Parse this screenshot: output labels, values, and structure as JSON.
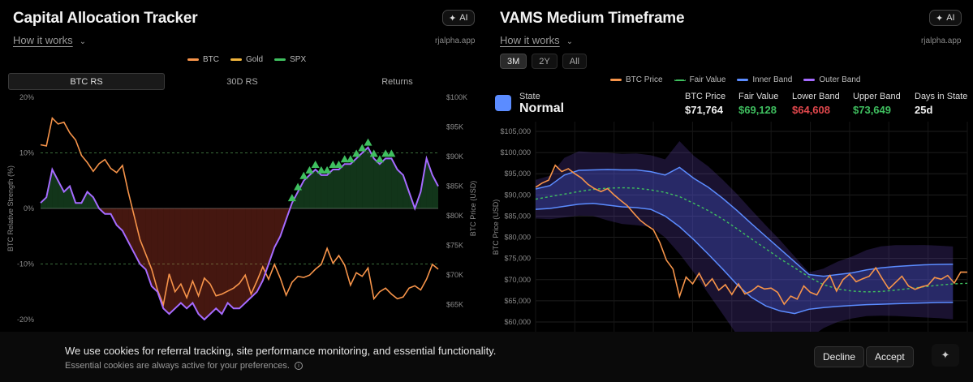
{
  "left": {
    "title": "Capital Allocation Tracker",
    "ai_label": "AI",
    "how_it_works": "How it works",
    "site": "rjalpha.app",
    "legend": [
      {
        "label": "BTC",
        "color": "#f7944a"
      },
      {
        "label": "Gold",
        "color": "#f0b43c"
      },
      {
        "label": "SPX",
        "color": "#3fbf5f"
      }
    ],
    "tabs": [
      "BTC RS",
      "30D RS",
      "Returns"
    ],
    "active_tab": "BTC RS"
  },
  "right": {
    "title": "VAMS Medium Timeframe",
    "ai_label": "AI",
    "how_it_works": "How it works",
    "site": "rjalpha.app",
    "ranges": [
      "3M",
      "2Y",
      "All"
    ],
    "active_range": "3M",
    "legend": [
      {
        "label": "BTC Price",
        "color": "#f7944a"
      },
      {
        "label": "Fair Value",
        "color": "#3fbf5f"
      },
      {
        "label": "Inner Band",
        "color": "#5b8cff"
      },
      {
        "label": "Outer Band",
        "color": "#a56bff"
      }
    ],
    "state": {
      "label": "State",
      "value": "Normal",
      "color": "#5b8cff"
    },
    "stats": [
      {
        "label": "BTC Price",
        "value": "$71,764",
        "color": "#f2f2f2"
      },
      {
        "label": "Fair Value",
        "value": "$69,128",
        "color": "#3fbf5f"
      },
      {
        "label": "Lower Band",
        "value": "$64,608",
        "color": "#e0474c"
      },
      {
        "label": "Upper Band",
        "value": "$73,649",
        "color": "#3fbf5f"
      },
      {
        "label": "Days in State",
        "value": "25d",
        "color": "#f2f2f2"
      }
    ]
  },
  "chart_data": [
    {
      "type": "line",
      "title": "Capital Allocation Tracker - BTC RS",
      "ylabel": "BTC Relative Strength (%)",
      "y2label": "BTC Price (USD)",
      "ylim": [
        -20,
        20
      ],
      "y_ticks": [
        "20%",
        "10%",
        "0%",
        "-10%",
        "-20%"
      ],
      "y2lim": [
        62500,
        100000
      ],
      "y2_ticks": [
        "$100K",
        "$95K",
        "$90K",
        "$85K",
        "$80K",
        "$75K",
        "$70K",
        "$65K"
      ],
      "series": [
        {
          "name": "BTC RS",
          "color": "#a56bff",
          "values": [
            1,
            2,
            7,
            5,
            3,
            4,
            1,
            1,
            3,
            2,
            0,
            -1,
            -1,
            -3,
            -4,
            -6,
            -8,
            -10,
            -11,
            -14,
            -15,
            -18,
            -19,
            -18,
            -17,
            -18,
            -17,
            -19,
            -20,
            -19,
            -18,
            -19,
            -17,
            -18,
            -18,
            -17,
            -16,
            -15,
            -13,
            -10,
            -7,
            -5,
            -2,
            1,
            3,
            5,
            6,
            7,
            6,
            6,
            7,
            7,
            8,
            8,
            9,
            10,
            11,
            9,
            8,
            9,
            9,
            7,
            6,
            3,
            0,
            3,
            9,
            6,
            4
          ]
        },
        {
          "name": "BTC Price",
          "color": "#f7944a",
          "values": [
            92000,
            91800,
            96500,
            95500,
            95800,
            94000,
            92800,
            90200,
            89000,
            87500,
            88800,
            89500,
            88000,
            87300,
            88500,
            84000,
            80000,
            76000,
            73500,
            71000,
            67500,
            65000,
            70200,
            67200,
            68500,
            66200,
            69000,
            66500,
            69500,
            68500,
            66500,
            66800,
            67300,
            67800,
            68600,
            70000,
            66800,
            69000,
            71400,
            69300,
            71800,
            69500,
            66600,
            68800,
            69800,
            69600,
            70000,
            71000,
            71800,
            74500,
            72000,
            73300,
            71700,
            68300,
            70400,
            69800,
            71200,
            66000,
            67200,
            67800,
            66800,
            66000,
            66300,
            67800,
            68200,
            67500,
            69300,
            71800,
            71000
          ]
        }
      ],
      "markers": {
        "name": "SPX signal",
        "color": "#3fbf5f",
        "count": 18
      }
    },
    {
      "type": "line",
      "title": "VAMS Medium Timeframe",
      "ylabel": "BTC Price (USD)",
      "ylim": [
        58000,
        107000
      ],
      "y_ticks": [
        "$105,000",
        "$100,000",
        "$95,000",
        "$90,000",
        "$85,000",
        "$80,000",
        "$75,000",
        "$70,000",
        "$65,000",
        "$60,000"
      ],
      "series": [
        {
          "name": "BTC Price",
          "color": "#f7944a",
          "values": [
            91800,
            92800,
            93500,
            97000,
            95500,
            96200,
            95000,
            94000,
            92500,
            91500,
            90800,
            91500,
            90000,
            88700,
            87500,
            85700,
            84000,
            82800,
            81800,
            78700,
            74600,
            72500,
            66000,
            70600,
            69000,
            71500,
            68500,
            70200,
            67500,
            68800,
            66500,
            69000,
            66600,
            67300,
            68500,
            67800,
            68000,
            67000,
            64200,
            66100,
            65400,
            68500,
            67000,
            66400,
            69200,
            71000,
            67300,
            70000,
            71300,
            69500,
            70200,
            70800,
            72800,
            70200,
            67800,
            69300,
            70800,
            68500,
            67700,
            68300,
            68700,
            70500,
            70100,
            71000,
            69200,
            71800,
            71764
          ]
        },
        {
          "name": "Fair Value",
          "color": "#3fbf5f",
          "values": [
            89000,
            89600,
            90200,
            90800,
            91300,
            91600,
            91700,
            91600,
            91200,
            90600,
            89600,
            88000,
            86300,
            84300,
            82000,
            79600,
            77300,
            74900,
            72800,
            70600,
            68800,
            67800,
            67300,
            67100,
            67200,
            67500,
            67900,
            68300,
            68700,
            69000,
            69128
          ]
        },
        {
          "name": "Inner Band Upper",
          "color": "#5b8cff",
          "values": [
            91400,
            92200,
            94700,
            95800,
            95900,
            96000,
            95900,
            95900,
            95500,
            94700,
            96500,
            93900,
            91800,
            89200,
            86300,
            83200,
            80200,
            77200,
            74200,
            71200,
            70800,
            71200,
            71600,
            72300,
            72800,
            73100,
            73300,
            73500,
            73600,
            73649
          ]
        },
        {
          "name": "Inner Band Lower",
          "color": "#5b8cff",
          "values": [
            86600,
            86800,
            87300,
            87800,
            88000,
            87600,
            87200,
            87000,
            86600,
            85000,
            82500,
            79400,
            76000,
            72500,
            68800,
            65800,
            63800,
            62600,
            62000,
            63000,
            63400,
            63700,
            63900,
            64100,
            64200,
            64300,
            64400,
            64500,
            64600,
            64608
          ]
        }
      ]
    }
  ],
  "cookie": {
    "message": "We use cookies for referral tracking, site performance monitoring, and essential functionality.",
    "sub": "Essential cookies are always active for your preferences.",
    "decline": "Decline",
    "accept": "Accept"
  }
}
